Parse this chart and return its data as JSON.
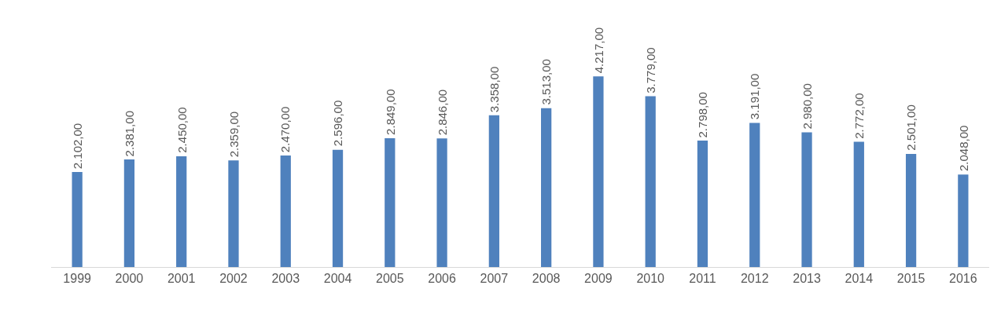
{
  "chart_data": {
    "type": "bar",
    "categories": [
      "1999",
      "2000",
      "2001",
      "2002",
      "2003",
      "2004",
      "2005",
      "2006",
      "2007",
      "2008",
      "2009",
      "2010",
      "2011",
      "2012",
      "2013",
      "2014",
      "2015",
      "2016"
    ],
    "values": [
      2102,
      2381,
      2450,
      2359,
      2470,
      2596,
      2849,
      2846,
      3358,
      3513,
      4217,
      3779,
      2798,
      3191,
      2980,
      2772,
      2501,
      2048
    ],
    "value_labels": [
      "2.102,00",
      "2.381,00",
      "2.450,00",
      "2.359,00",
      "2.470,00",
      "2.596,00",
      "2.849,00",
      "2.846,00",
      "3.358,00",
      "3.513,00",
      "4.217,00",
      "3.779,00",
      "2.798,00",
      "3.191,00",
      "2.980,00",
      "2.772,00",
      "2.501,00",
      "2.048,00"
    ],
    "color": "#4f81bd",
    "tick_labels": "x",
    "legend": false
  }
}
